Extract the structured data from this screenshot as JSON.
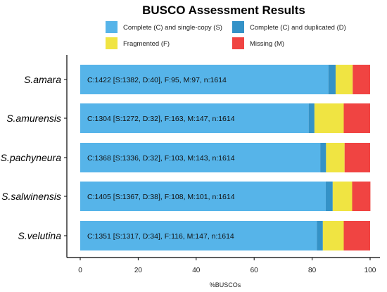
{
  "chart_data": {
    "type": "bar",
    "orientation": "horizontal",
    "stacked": true,
    "title": "BUSCO Assessment Results",
    "xlabel": "%BUSCOs",
    "ylabel": "",
    "xlim": [
      0,
      100
    ],
    "x_ticks": [
      0,
      20,
      40,
      60,
      80,
      100
    ],
    "grid": false,
    "legend_position": "top",
    "categories": [
      "S.amara",
      "S.amurensis",
      "S.pachyneura",
      "S.salwinensis",
      "S.velutina"
    ],
    "series": [
      {
        "name": "Complete (C) and single-copy (S)",
        "color": "#56B4E9",
        "values": [
          85.6,
          78.8,
          82.8,
          84.7,
          81.6
        ]
      },
      {
        "name": "Complete (C) and duplicated (D)",
        "color": "#3492C7",
        "values": [
          2.5,
          2.0,
          2.0,
          2.4,
          2.1
        ]
      },
      {
        "name": "Fragmented (F)",
        "color": "#F0E442",
        "values": [
          5.9,
          10.1,
          6.4,
          6.7,
          7.2
        ]
      },
      {
        "name": "Missing (M)",
        "color": "#F04442",
        "values": [
          6.0,
          9.1,
          8.8,
          6.3,
          9.1
        ]
      }
    ],
    "bar_labels": [
      "C:1422 [S:1382, D:40], F:95, M:97, n:1614",
      "C:1304 [S:1272, D:32], F:163, M:147, n:1614",
      "C:1368 [S:1336, D:32], F:103, M:143, n:1614",
      "C:1405 [S:1367, D:38], F:108, M:101, n:1614",
      "C:1351 [S:1317, D:34], F:116, M:147, n:1614"
    ]
  }
}
